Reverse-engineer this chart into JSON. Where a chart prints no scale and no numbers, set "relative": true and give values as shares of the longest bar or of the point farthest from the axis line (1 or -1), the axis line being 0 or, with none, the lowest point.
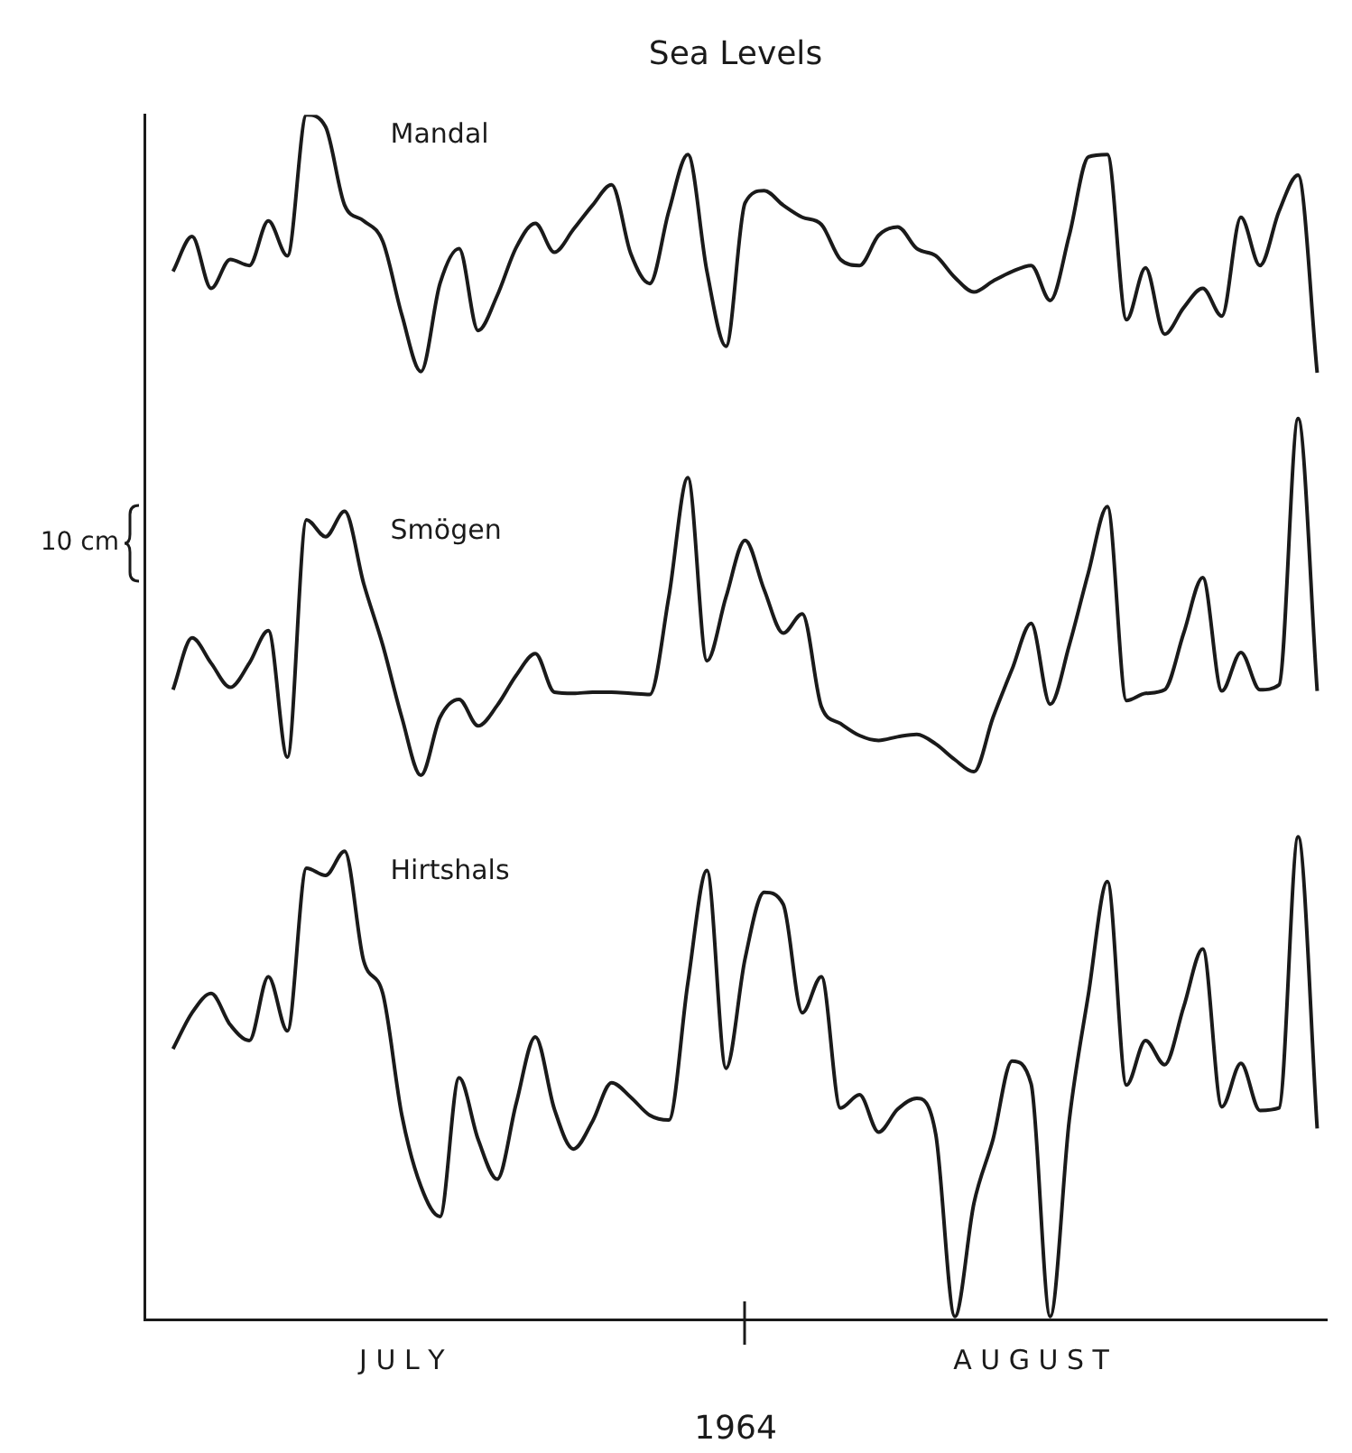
{
  "chart_data": {
    "type": "line",
    "title": "Sea Levels",
    "xlabel": "1964",
    "relative": true,
    "legend": false,
    "marker": "none",
    "line_style": "solid",
    "grid": false,
    "categories": [
      null,
      null,
      null,
      null,
      null,
      null,
      null,
      null,
      null,
      null,
      null,
      null,
      null,
      "J U L Y",
      null,
      null,
      null,
      null,
      null,
      null,
      null,
      null,
      null,
      null,
      null,
      null,
      null,
      null,
      null,
      null,
      null,
      null,
      null,
      null,
      null,
      null,
      null,
      null,
      null,
      null,
      null,
      null,
      null,
      null,
      null,
      null,
      "A U G U S T",
      null,
      null,
      null,
      null,
      null,
      null,
      null,
      null,
      null,
      null,
      null,
      null,
      null,
      null,
      null
    ],
    "annotations": [
      "10 cm"
    ],
    "series": [
      {
        "name": "Mandal",
        "color": "#1a1a1a",
        "values": [
          null,
          0.87,
          0.899,
          0.856,
          0.88,
          0.875,
          0.912,
          0.883,
          1.0,
          0.99,
          0.925,
          0.912,
          0.895,
          0.834,
          0.787,
          0.86,
          0.889,
          0.821,
          0.85,
          0.89,
          0.91,
          0.886,
          0.905,
          0.925,
          0.942,
          0.885,
          0.86,
          0.92,
          0.967,
          0.87,
          0.808,
          0.927,
          0.937,
          0.925,
          0.915,
          0.909,
          0.88,
          0.875,
          0.9,
          0.907,
          0.889,
          0.883,
          0.865,
          0.853,
          0.862,
          0.87,
          0.875,
          0.846,
          0.9,
          0.965,
          0.967,
          0.83,
          0.873,
          0.818,
          0.84,
          0.856,
          0.833,
          0.915,
          0.875,
          0.92,
          0.95,
          0.786
        ]
      },
      {
        "name": "Smögen",
        "color": "#1a1a1a",
        "values": [
          null,
          0.523,
          0.566,
          0.545,
          0.525,
          0.545,
          0.572,
          0.467,
          0.664,
          0.65,
          0.671,
          0.611,
          0.56,
          0.5,
          0.452,
          0.5,
          0.515,
          0.493,
          0.51,
          0.535,
          0.553,
          0.521,
          0.52,
          0.521,
          0.521,
          0.52,
          0.519,
          0.6,
          0.699,
          0.547,
          0.6,
          0.647,
          0.606,
          0.57,
          0.586,
          0.509,
          0.495,
          0.485,
          0.481,
          0.484,
          0.486,
          0.478,
          0.465,
          0.455,
          0.5,
          0.54,
          0.578,
          0.511,
          0.56,
          0.62,
          0.675,
          0.514,
          0.52,
          0.523,
          0.57,
          0.616,
          0.522,
          0.554,
          0.523,
          0.527,
          0.748,
          0.522
        ]
      },
      {
        "name": "Hirtshals",
        "color": "#1a1a1a",
        "values": [
          null,
          0.225,
          0.255,
          0.271,
          0.245,
          0.232,
          0.285,
          0.24,
          0.375,
          0.369,
          0.389,
          0.298,
          0.271,
          0.17,
          0.111,
          0.086,
          0.201,
          0.15,
          0.117,
          0.18,
          0.235,
          0.175,
          0.142,
          0.165,
          0.197,
          0.185,
          0.17,
          0.166,
          0.28,
          0.373,
          0.209,
          0.3,
          0.355,
          0.345,
          0.255,
          0.285,
          0.176,
          0.187,
          0.156,
          0.175,
          0.184,
          0.154,
          0.003,
          0.097,
          0.15,
          0.215,
          0.196,
          0.003,
          0.166,
          0.27,
          0.364,
          0.195,
          0.232,
          0.212,
          0.26,
          0.308,
          0.177,
          0.213,
          0.174,
          0.176,
          0.401,
          0.159
        ]
      }
    ]
  }
}
